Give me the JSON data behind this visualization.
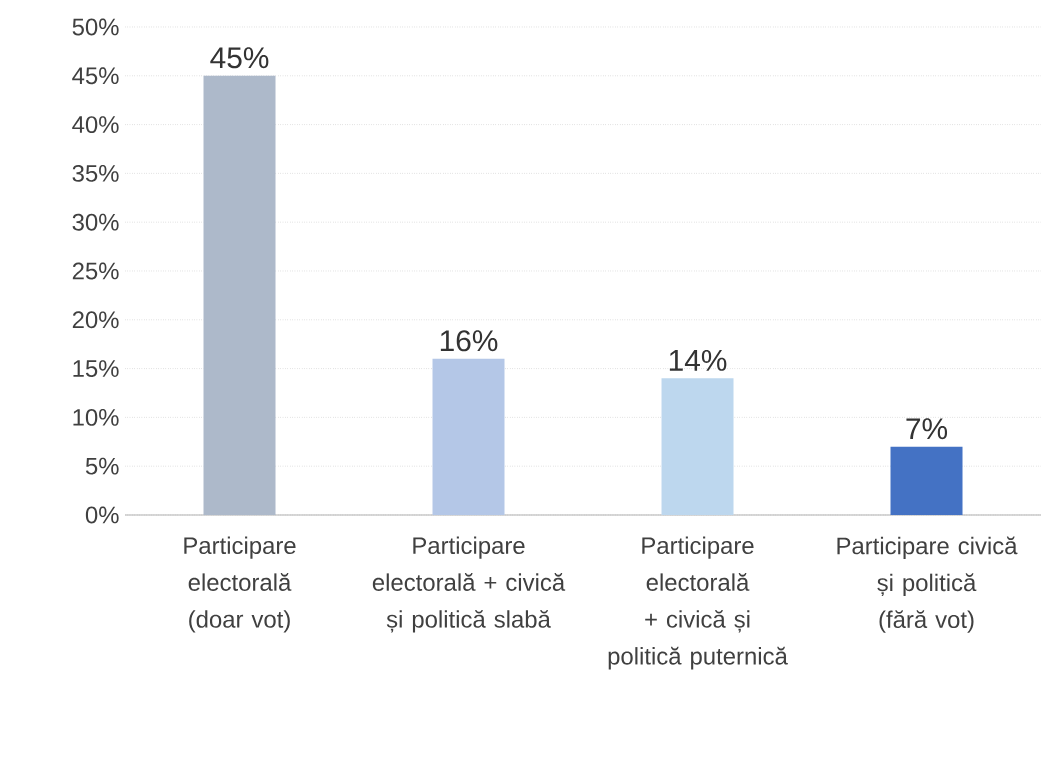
{
  "chart_data": {
    "type": "bar",
    "categories": [
      "Participare electorală (doar vot)",
      "Participare electorală + civică și politică slabă",
      "Participare electorală + civică și politică puternică",
      "Participare civică și politică (fără vot)"
    ],
    "values": [
      45,
      16,
      14,
      7
    ],
    "colors": [
      "#adb9ca",
      "#b4c7e7",
      "#bdd7ee",
      "#4472c4"
    ],
    "value_labels": [
      "45%",
      "16%",
      "14%",
      "7%"
    ],
    "ylim": [
      0,
      50
    ],
    "yticks": [
      {
        "value": 0,
        "label": "0%"
      },
      {
        "value": 5,
        "label": "5%"
      },
      {
        "value": 10,
        "label": "10%"
      },
      {
        "value": 15,
        "label": "15%"
      },
      {
        "value": 20,
        "label": "20%"
      },
      {
        "value": 25,
        "label": "25%"
      },
      {
        "value": 30,
        "label": "30%"
      },
      {
        "value": 35,
        "label": "35%"
      },
      {
        "value": 40,
        "label": "40%"
      },
      {
        "value": 45,
        "label": "45%"
      },
      {
        "value": 50,
        "label": "50%"
      }
    ],
    "grid": "y"
  }
}
